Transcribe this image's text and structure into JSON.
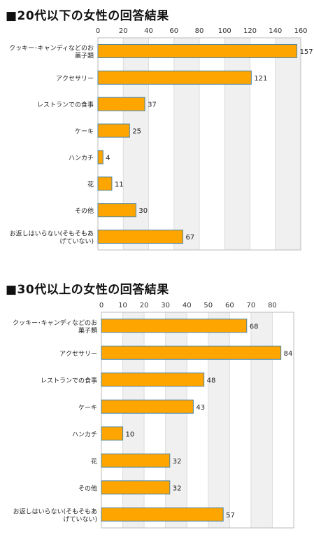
{
  "chart_data": [
    {
      "type": "bar",
      "orientation": "horizontal",
      "title": "■20代以下の女性の回答結果",
      "categories": [
        [
          "クッキー･キャンディなどのお",
          "菓子類"
        ],
        [
          "アクセサリー"
        ],
        [
          "レストランでの食事"
        ],
        [
          "ケーキ"
        ],
        [
          "ハンカチ"
        ],
        [
          "花"
        ],
        [
          "その他"
        ],
        [
          "お返しはいらない(そもそもあ",
          "げていない)"
        ]
      ],
      "values": [
        157,
        121,
        37,
        25,
        4,
        11,
        30,
        67
      ],
      "ticks": [
        0,
        20,
        40,
        60,
        80,
        100,
        120,
        140,
        160
      ],
      "xlim": [
        0,
        160
      ],
      "grid": "alternating-bands",
      "colors": {
        "bar": "#ffa500",
        "bar_border": "#4a86a8",
        "band": "#f0f0f0"
      }
    },
    {
      "type": "bar",
      "orientation": "horizontal",
      "title": "■30代以上の女性の回答結果",
      "categories": [
        [
          "クッキー･キャンディなどのお",
          "菓子類"
        ],
        [
          "アクセサリー"
        ],
        [
          "レストランでの食事"
        ],
        [
          "ケーキ"
        ],
        [
          "ハンカチ"
        ],
        [
          "花"
        ],
        [
          "その他"
        ],
        [
          "お返しはいらない(そもそもあ",
          "げていない)"
        ]
      ],
      "values": [
        68,
        84,
        48,
        43,
        10,
        32,
        32,
        57
      ],
      "ticks": [
        0,
        10,
        20,
        30,
        40,
        50,
        60,
        70,
        80
      ],
      "xlim": [
        0,
        90
      ],
      "grid": "alternating-bands",
      "colors": {
        "bar": "#ffa500",
        "bar_border": "#4a86a8",
        "band": "#f0f0f0"
      }
    }
  ]
}
